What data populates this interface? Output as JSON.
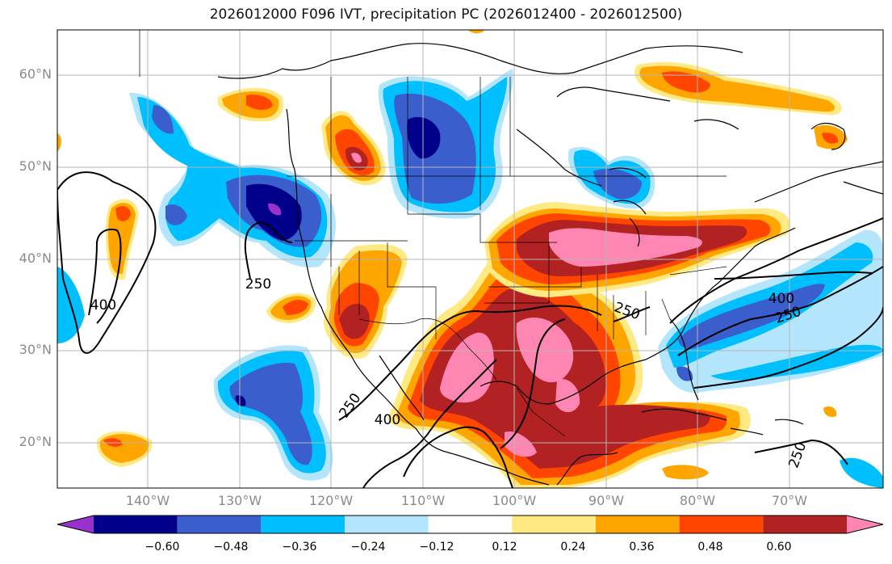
{
  "title": "2026012000 F096 IVT, precipitation PC (2026012400 - 2026012500)",
  "lat_labels": [
    "60°N",
    "50°N",
    "40°N",
    "30°N",
    "20°N"
  ],
  "lon_labels": [
    "140°W",
    "130°W",
    "120°W",
    "110°W",
    "100°W",
    "90°W",
    "80°W",
    "70°W"
  ],
  "colorbar": {
    "colors": [
      "#9932CC",
      "#00008B",
      "#3A5FCD",
      "#00BFFF",
      "#B3E5FC",
      "#FFFFFF",
      "#FFE982",
      "#FFA500",
      "#FF4500",
      "#B22222",
      "#FF85B3"
    ],
    "tick_labels": [
      "−0.60",
      "−0.48",
      "−0.36",
      "−0.24",
      "−0.12",
      "0.12",
      "0.24",
      "0.36",
      "0.48",
      "0.60"
    ]
  },
  "contour_labels": [
    "400",
    "250",
    "400",
    "250",
    "250",
    "400",
    "250",
    "250"
  ],
  "colors": {
    "grid": "#b5b5b5",
    "axis_text": "#8a8a8a",
    "pink": "#FF85B3",
    "darkred": "#B22222",
    "red": "#FF4500",
    "orange": "#FFA500",
    "yellow": "#FFE982",
    "lightblue": "#B3E5FC",
    "cyan": "#00BFFF",
    "blue": "#3A5FCD",
    "navy": "#00008B",
    "purple": "#9932CC"
  }
}
